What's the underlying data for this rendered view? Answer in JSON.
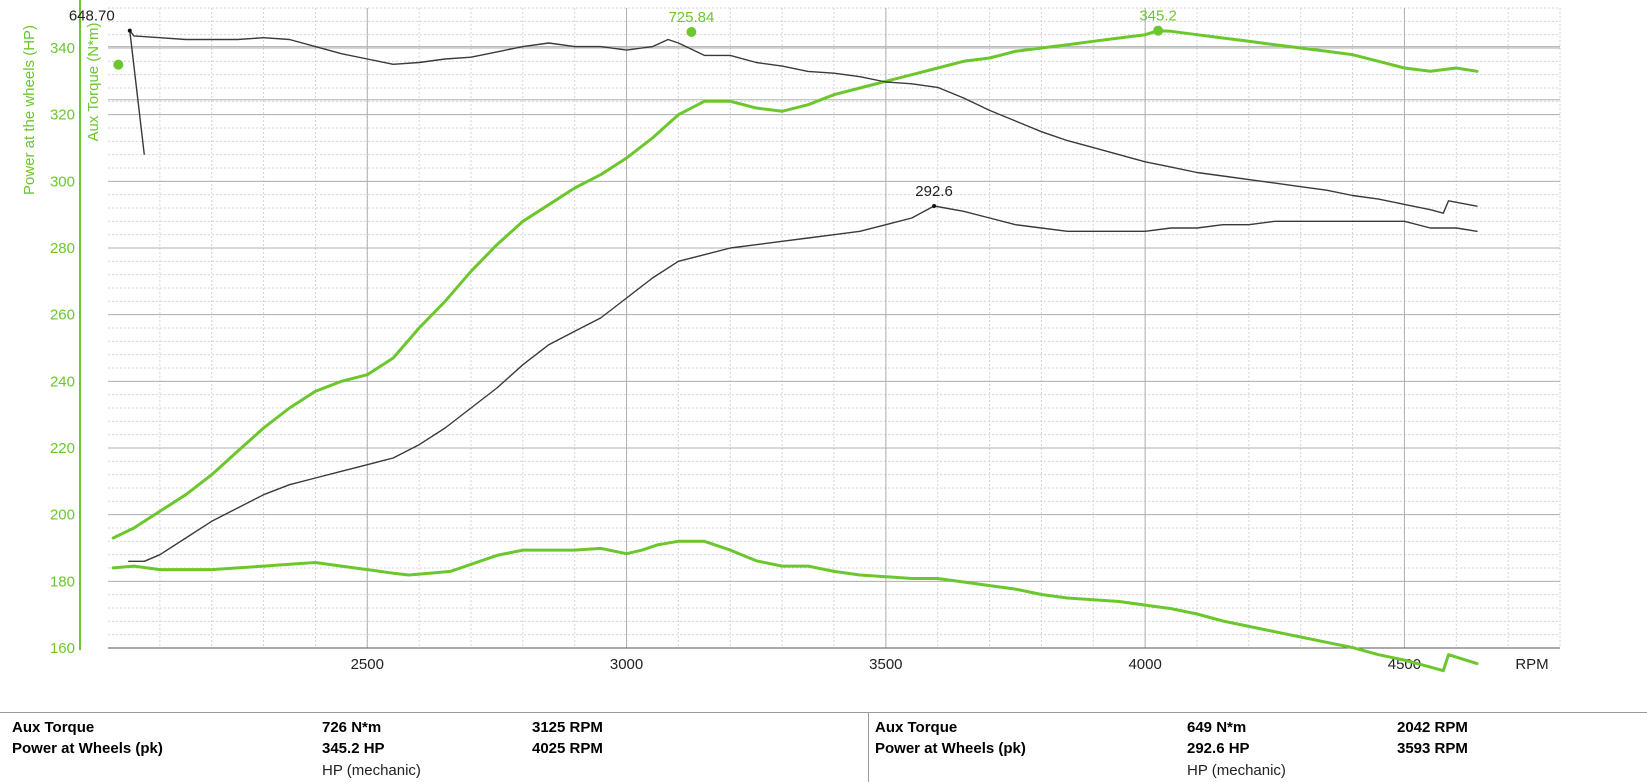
{
  "chart_data": {
    "type": "line",
    "xlabel": "RPM",
    "ylabel_left": "Power at the wheels (HP)",
    "ylabel_right": "Aux Torque (N*m)",
    "xlim": [
      2000,
      4800
    ],
    "ylim": [
      160,
      352
    ],
    "x_ticks": [
      2500,
      3000,
      3500,
      4000,
      4500
    ],
    "y_ticks": [
      160,
      180,
      200,
      220,
      240,
      260,
      280,
      300,
      320,
      340
    ],
    "grid": true,
    "series": [
      {
        "name": "Aux Torque",
        "run": "green",
        "color": "#6cc72e",
        "x": [
          2010,
          2050,
          2100,
          2150,
          2200,
          2250,
          2300,
          2350,
          2400,
          2450,
          2500,
          2550,
          2580,
          2620,
          2660,
          2700,
          2750,
          2800,
          2850,
          2900,
          2950,
          3000,
          3030,
          3060,
          3100,
          3125,
          3150,
          3200,
          3250,
          3300,
          3350,
          3400,
          3450,
          3500,
          3550,
          3600,
          3650,
          3700,
          3750,
          3800,
          3850,
          3900,
          3950,
          4000,
          4050,
          4100,
          4150,
          4200,
          4250,
          4300,
          4350,
          4400,
          4450,
          4500,
          4550,
          4575,
          4585,
          4640
        ],
        "y": [
          346,
          347,
          345,
          345,
          345,
          346,
          347,
          348,
          349,
          347,
          345,
          343,
          342,
          343,
          344,
          348,
          353,
          356,
          356,
          356,
          357,
          354,
          356,
          359,
          361,
          361,
          361,
          356,
          350,
          347,
          347,
          344,
          342,
          341,
          340,
          340,
          338,
          336,
          334,
          331,
          329,
          328,
          327,
          325,
          323,
          320,
          316,
          313,
          310,
          307,
          304,
          301,
          297,
          294,
          290,
          288,
          297,
          292
        ]
      },
      {
        "name": "Power at Wheels (pk)",
        "run": "green",
        "color": "#6cc72e",
        "x": [
          2010,
          2050,
          2100,
          2150,
          2200,
          2250,
          2300,
          2350,
          2400,
          2450,
          2500,
          2550,
          2600,
          2650,
          2700,
          2750,
          2800,
          2850,
          2900,
          2950,
          3000,
          3050,
          3100,
          3150,
          3200,
          3250,
          3300,
          3350,
          3400,
          3450,
          3500,
          3550,
          3600,
          3650,
          3700,
          3750,
          3800,
          3850,
          3900,
          3950,
          4000,
          4025,
          4050,
          4100,
          4150,
          4200,
          4250,
          4300,
          4350,
          4400,
          4450,
          4500,
          4550,
          4600,
          4640
        ],
        "y": [
          193,
          196,
          201,
          206,
          212,
          219,
          226,
          232,
          237,
          240,
          242,
          247,
          256,
          264,
          273,
          281,
          288,
          293,
          298,
          302,
          307,
          313,
          320,
          324,
          324,
          322,
          321,
          323,
          326,
          328,
          330,
          332,
          334,
          336,
          337,
          339,
          340,
          341,
          342,
          343,
          344,
          345.2,
          345,
          344,
          343,
          342,
          341,
          340,
          339,
          338,
          336,
          334,
          333,
          334,
          333
        ]
      },
      {
        "name": "Aux Torque",
        "run": "black",
        "color": "#3a3a3a",
        "x": [
          2042,
          2050,
          2100,
          2150,
          2200,
          2250,
          2300,
          2350,
          2400,
          2450,
          2500,
          2550,
          2600,
          2650,
          2700,
          2750,
          2800,
          2850,
          2900,
          2950,
          3000,
          3050,
          3080,
          3100,
          3150,
          3200,
          3250,
          3300,
          3350,
          3400,
          3450,
          3500,
          3550,
          3600,
          3650,
          3700,
          3750,
          3800,
          3850,
          3900,
          3950,
          4000,
          4050,
          4100,
          4150,
          4200,
          4250,
          4300,
          4350,
          4400,
          4450,
          4500,
          4550,
          4575,
          4585,
          4640
        ],
        "y": [
          649,
          646,
          645,
          644,
          644,
          644,
          645,
          644,
          640,
          636,
          633,
          630,
          631,
          633,
          634,
          637,
          640,
          642,
          640,
          640,
          638,
          640,
          644,
          642,
          635,
          635,
          631,
          629,
          626,
          625,
          623,
          620,
          619,
          617,
          611,
          604,
          598,
          592,
          587,
          583,
          579,
          575,
          572,
          569,
          567,
          565,
          563,
          561,
          559,
          556,
          554,
          551,
          548,
          546,
          553,
          550
        ]
      },
      {
        "name": "Power at Wheels (pk)",
        "run": "black",
        "color": "#3a3a3a",
        "x": [
          2040,
          2070,
          2100,
          2150,
          2200,
          2250,
          2300,
          2350,
          2400,
          2450,
          2500,
          2550,
          2600,
          2650,
          2700,
          2750,
          2800,
          2850,
          2900,
          2950,
          3000,
          3050,
          3100,
          3150,
          3200,
          3250,
          3300,
          3350,
          3400,
          3450,
          3500,
          3550,
          3593,
          3650,
          3700,
          3750,
          3800,
          3850,
          3900,
          3950,
          4000,
          4050,
          4100,
          4150,
          4200,
          4250,
          4300,
          4350,
          4400,
          4450,
          4500,
          4550,
          4600,
          4640
        ],
        "y": [
          186,
          186,
          188,
          193,
          198,
          202,
          206,
          209,
          211,
          213,
          215,
          217,
          221,
          226,
          232,
          238,
          245,
          251,
          255,
          259,
          265,
          271,
          276,
          278,
          280,
          281,
          282,
          283,
          284,
          285,
          287,
          289,
          292.6,
          291,
          289,
          287,
          286,
          285,
          285,
          285,
          285,
          286,
          286,
          287,
          287,
          288,
          288,
          288,
          288,
          288,
          288,
          286,
          286,
          285
        ]
      }
    ],
    "annotations": [
      {
        "label": "725.84",
        "series": 0,
        "x": 3125,
        "y": 361,
        "color": "#6cc72e"
      },
      {
        "label": "345.2",
        "series": 1,
        "x": 4025,
        "y": 345.2,
        "color": "#6cc72e"
      },
      {
        "label": "648.70",
        "series": 2,
        "x": 2042,
        "y": 649,
        "color": "#222222"
      },
      {
        "label": "292.6",
        "series": 3,
        "x": 3593,
        "y": 292.6,
        "color": "#222222"
      }
    ],
    "axis_color": "#6cc72e"
  },
  "summary": {
    "left": {
      "row1": {
        "label": "Aux Torque",
        "value": "726 N*m",
        "rpm": "3125 RPM"
      },
      "row2": {
        "label": "Power at Wheels  (pk)",
        "value": "345.2 HP",
        "rpm": "4025 RPM"
      },
      "note": "HP (mechanic)"
    },
    "right": {
      "row1": {
        "label": "Aux Torque",
        "value": "649 N*m",
        "rpm": "2042 RPM"
      },
      "row2": {
        "label": "Power at Wheels  (pk)",
        "value": "292.6 HP",
        "rpm": "3593 RPM"
      },
      "note": "HP (mechanic)"
    }
  }
}
